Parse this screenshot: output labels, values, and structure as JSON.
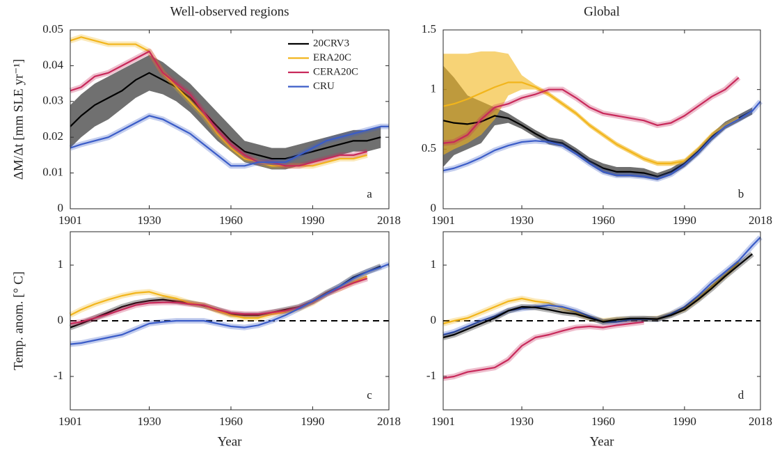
{
  "chart_data": [
    {
      "type": "line",
      "title": "Well-observed regions",
      "ylabel": "ΔM/Δt [mm SLE yr⁻¹]",
      "panel_label": "a",
      "legend": "upper right",
      "x": [
        1901,
        1905,
        1910,
        1915,
        1920,
        1925,
        1930,
        1935,
        1940,
        1945,
        1950,
        1955,
        1960,
        1965,
        1970,
        1975,
        1980,
        1985,
        1990,
        1995,
        2000,
        2005,
        2010,
        2015,
        2018
      ],
      "xlim": [
        1901,
        2018
      ],
      "xticks": [
        1901,
        1930,
        1960,
        1990,
        2018
      ],
      "ylim": [
        0,
        0.05
      ],
      "yticks": [
        0,
        0.01,
        0.02,
        0.03,
        0.04,
        0.05
      ],
      "series": [
        {
          "name": "20CRV3",
          "color": "#000000",
          "values": [
            0.023,
            0.026,
            0.029,
            0.031,
            0.033,
            0.036,
            0.038,
            0.036,
            0.034,
            0.031,
            0.027,
            0.023,
            0.019,
            0.016,
            0.015,
            0.014,
            0.014,
            0.015,
            0.016,
            0.017,
            0.018,
            0.019,
            0.019,
            0.02,
            null
          ],
          "lower": [
            0.017,
            0.02,
            0.023,
            0.025,
            0.028,
            0.031,
            0.033,
            0.032,
            0.03,
            0.027,
            0.023,
            0.019,
            0.016,
            0.013,
            0.012,
            0.011,
            0.011,
            0.012,
            0.013,
            0.014,
            0.015,
            0.016,
            0.016,
            0.017,
            null
          ],
          "upper": [
            0.029,
            0.032,
            0.035,
            0.037,
            0.039,
            0.041,
            0.043,
            0.041,
            0.038,
            0.035,
            0.031,
            0.027,
            0.023,
            0.019,
            0.018,
            0.017,
            0.017,
            0.018,
            0.019,
            0.02,
            0.021,
            0.022,
            0.022,
            0.023,
            null
          ]
        },
        {
          "name": "ERA20C",
          "color": "#f2b51b",
          "values": [
            0.047,
            0.048,
            0.047,
            0.046,
            0.046,
            0.046,
            0.044,
            0.038,
            0.034,
            0.03,
            0.026,
            0.021,
            0.017,
            0.014,
            0.013,
            0.012,
            0.012,
            0.012,
            0.012,
            0.013,
            0.014,
            0.014,
            0.015,
            null,
            null
          ]
        },
        {
          "name": "CERA20C",
          "color": "#c8285a",
          "values": [
            0.033,
            0.034,
            0.037,
            0.038,
            0.04,
            0.042,
            0.044,
            0.038,
            0.035,
            0.032,
            0.027,
            0.022,
            0.018,
            0.015,
            0.013,
            0.013,
            0.012,
            0.012,
            0.013,
            0.014,
            0.015,
            0.015,
            0.016,
            null,
            null
          ]
        },
        {
          "name": "CRU",
          "color": "#3a5cc8",
          "values": [
            0.017,
            0.018,
            0.019,
            0.02,
            0.022,
            0.024,
            0.026,
            0.025,
            0.023,
            0.021,
            0.018,
            0.015,
            0.012,
            0.012,
            0.013,
            0.013,
            0.013,
            0.015,
            0.017,
            0.019,
            0.02,
            0.021,
            0.022,
            0.023,
            0.023
          ]
        }
      ]
    },
    {
      "type": "line",
      "title": "Global",
      "panel_label": "b",
      "x": [
        1901,
        1905,
        1910,
        1915,
        1920,
        1925,
        1930,
        1935,
        1940,
        1945,
        1950,
        1955,
        1960,
        1965,
        1970,
        1975,
        1980,
        1985,
        1990,
        1995,
        2000,
        2005,
        2010,
        2015,
        2018
      ],
      "xlim": [
        1901,
        2018
      ],
      "xticks": [
        1901,
        1930,
        1960,
        1990,
        2018
      ],
      "ylim": [
        0,
        1.5
      ],
      "yticks": [
        0,
        0.5,
        1,
        1.5
      ],
      "series": [
        {
          "color": "#000000",
          "values": [
            0.74,
            0.72,
            0.71,
            0.73,
            0.78,
            0.76,
            0.7,
            0.63,
            0.57,
            0.55,
            0.48,
            0.4,
            0.34,
            0.31,
            0.31,
            0.3,
            0.27,
            0.31,
            0.38,
            0.48,
            0.6,
            0.7,
            0.76,
            0.82,
            null
          ],
          "lower": [
            0.35,
            0.45,
            0.5,
            0.55,
            0.7,
            0.72,
            0.67,
            0.6,
            0.54,
            0.52,
            0.45,
            0.37,
            0.3,
            0.27,
            0.27,
            0.26,
            0.24,
            0.28,
            0.35,
            0.45,
            0.57,
            0.67,
            0.73,
            0.79,
            null
          ],
          "upper": [
            1.2,
            1.1,
            0.95,
            0.9,
            0.85,
            0.8,
            0.73,
            0.66,
            0.6,
            0.58,
            0.51,
            0.43,
            0.38,
            0.35,
            0.35,
            0.34,
            0.3,
            0.34,
            0.41,
            0.51,
            0.63,
            0.73,
            0.79,
            0.85,
            null
          ]
        },
        {
          "color": "#f2b51b",
          "values": [
            0.86,
            0.88,
            0.92,
            0.97,
            1.02,
            1.06,
            1.06,
            1.02,
            0.96,
            0.88,
            0.8,
            0.7,
            0.62,
            0.54,
            0.48,
            0.42,
            0.38,
            0.38,
            0.4,
            0.5,
            0.62,
            0.7,
            0.76,
            null,
            null
          ],
          "lower": [
            0.45,
            0.5,
            0.55,
            0.62,
            0.75,
            0.95,
            1.0,
            1.0,
            0.94,
            0.86,
            0.78,
            0.68,
            0.6,
            0.52,
            0.46,
            0.4,
            0.36,
            0.36,
            0.38,
            0.48,
            0.6,
            0.68,
            0.74,
            null,
            null
          ],
          "upper": [
            1.3,
            1.3,
            1.3,
            1.32,
            1.32,
            1.3,
            1.12,
            1.04,
            0.98,
            0.9,
            0.82,
            0.72,
            0.64,
            0.56,
            0.5,
            0.44,
            0.4,
            0.4,
            0.42,
            0.52,
            0.64,
            0.72,
            0.78,
            null,
            null
          ]
        },
        {
          "color": "#c8285a",
          "values": [
            0.55,
            0.56,
            0.62,
            0.75,
            0.85,
            0.88,
            0.93,
            0.96,
            1.0,
            1.0,
            0.93,
            0.85,
            0.8,
            0.78,
            0.76,
            0.74,
            0.7,
            0.72,
            0.78,
            0.86,
            0.94,
            1.0,
            1.1,
            null,
            null
          ]
        },
        {
          "color": "#3a5cc8",
          "values": [
            0.32,
            0.34,
            0.38,
            0.43,
            0.49,
            0.53,
            0.56,
            0.57,
            0.56,
            0.53,
            0.46,
            0.38,
            0.31,
            0.28,
            0.28,
            0.27,
            0.25,
            0.29,
            0.37,
            0.47,
            0.59,
            0.69,
            0.75,
            0.82,
            0.9
          ]
        }
      ]
    },
    {
      "type": "line",
      "ylabel": "Temp. anom. [° C]",
      "xlabel": "Year",
      "panel_label": "c",
      "hline": 0,
      "x": [
        1901,
        1905,
        1910,
        1915,
        1920,
        1925,
        1930,
        1935,
        1940,
        1945,
        1950,
        1955,
        1960,
        1965,
        1970,
        1975,
        1980,
        1985,
        1990,
        1995,
        2000,
        2005,
        2010,
        2015,
        2018
      ],
      "xlim": [
        1901,
        2018
      ],
      "xticks": [
        1901,
        1930,
        1960,
        1990,
        2018
      ],
      "ylim": [
        -1.6,
        1.6
      ],
      "yticks": [
        -1,
        0,
        1
      ],
      "series": [
        {
          "color": "#000000",
          "values": [
            -0.12,
            -0.05,
            0.05,
            0.15,
            0.25,
            0.32,
            0.36,
            0.38,
            0.35,
            0.32,
            0.27,
            0.2,
            0.12,
            0.1,
            0.1,
            0.15,
            0.2,
            0.25,
            0.35,
            0.5,
            0.62,
            0.78,
            0.88,
            0.98,
            null
          ]
        },
        {
          "color": "#f2b51b",
          "values": [
            0.1,
            0.2,
            0.3,
            0.38,
            0.45,
            0.5,
            0.52,
            0.45,
            0.4,
            0.32,
            0.28,
            0.18,
            0.1,
            0.05,
            0.05,
            0.12,
            0.15,
            0.22,
            0.32,
            0.48,
            0.58,
            0.7,
            0.8,
            null,
            null
          ]
        },
        {
          "color": "#c8285a",
          "values": [
            -0.05,
            -0.02,
            0.05,
            0.12,
            0.2,
            0.28,
            0.32,
            0.33,
            0.33,
            0.3,
            0.28,
            0.2,
            0.14,
            0.12,
            0.12,
            0.15,
            0.18,
            0.24,
            0.34,
            0.48,
            0.58,
            0.68,
            0.76,
            null,
            null
          ]
        },
        {
          "color": "#3a5cc8",
          "values": [
            -0.42,
            -0.4,
            -0.35,
            -0.3,
            -0.25,
            -0.15,
            -0.05,
            -0.02,
            0.0,
            0.0,
            0.0,
            -0.05,
            -0.1,
            -0.12,
            -0.08,
            0.0,
            0.1,
            0.22,
            0.35,
            0.48,
            0.62,
            0.76,
            0.88,
            0.96,
            1.02
          ]
        }
      ]
    },
    {
      "type": "line",
      "xlabel": "Year",
      "panel_label": "d",
      "hline": 0,
      "x": [
        1901,
        1905,
        1910,
        1915,
        1920,
        1925,
        1930,
        1935,
        1940,
        1945,
        1950,
        1955,
        1960,
        1965,
        1970,
        1975,
        1980,
        1985,
        1990,
        1995,
        2000,
        2005,
        2010,
        2015,
        2018
      ],
      "xlim": [
        1901,
        2018
      ],
      "xticks": [
        1901,
        1930,
        1960,
        1990,
        2018
      ],
      "ylim": [
        -1.6,
        1.6
      ],
      "yticks": [
        -1,
        0,
        1
      ],
      "series": [
        {
          "color": "#f2b51b",
          "values": [
            -0.05,
            0.0,
            0.05,
            0.15,
            0.25,
            0.35,
            0.4,
            0.35,
            0.32,
            0.22,
            0.15,
            0.05,
            0.0,
            0.02,
            0.02,
            0.03,
            0.04,
            0.12,
            0.22,
            0.4,
            0.62,
            0.82,
            1.05,
            null,
            null
          ]
        },
        {
          "color": "#c8285a",
          "values": [
            -1.03,
            -1.0,
            -0.92,
            -0.88,
            -0.84,
            -0.7,
            -0.45,
            -0.3,
            -0.25,
            -0.18,
            -0.12,
            -0.1,
            -0.12,
            -0.08,
            -0.05,
            -0.02,
            null,
            null,
            null,
            null,
            null,
            null,
            null,
            null,
            null
          ]
        },
        {
          "color": "#3a5cc8",
          "values": [
            -0.25,
            -0.2,
            -0.1,
            0.0,
            0.08,
            0.18,
            0.22,
            0.25,
            0.28,
            0.25,
            0.18,
            0.08,
            -0.02,
            -0.02,
            0.02,
            0.03,
            0.03,
            0.12,
            0.25,
            0.45,
            0.68,
            0.88,
            1.08,
            1.35,
            1.5
          ]
        },
        {
          "color": "#000000",
          "values": [
            -0.3,
            -0.25,
            -0.15,
            -0.05,
            0.05,
            0.18,
            0.25,
            0.24,
            0.2,
            0.15,
            0.12,
            0.05,
            -0.02,
            0.02,
            0.04,
            0.04,
            0.03,
            0.1,
            0.2,
            0.38,
            0.58,
            0.8,
            1.0,
            1.2,
            null
          ]
        }
      ]
    }
  ]
}
